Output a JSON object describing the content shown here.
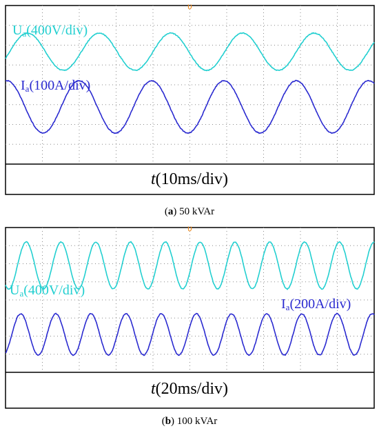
{
  "panels": [
    {
      "voltage_label": {
        "symbol": "U",
        "sub": "a",
        "scale": "(400V/div)"
      },
      "current_label": {
        "symbol": "I",
        "sub": "a",
        "scale": "(100A/div)"
      },
      "time_label": {
        "symbol": "t",
        "scale": "(10ms/div)"
      },
      "caption": {
        "open": "(",
        "letter": "a",
        "rest": ") 50 kVAr"
      }
    },
    {
      "voltage_label": {
        "symbol": "U",
        "sub": "a",
        "scale": "(400V/div)"
      },
      "current_label": {
        "symbol": "I",
        "sub": "a",
        "scale": "(200A/div)"
      },
      "time_label": {
        "symbol": "t",
        "scale": "(20ms/div)"
      },
      "caption": {
        "open": "(",
        "letter": "b",
        "rest": ") 100 kVAr"
      }
    }
  ]
}
